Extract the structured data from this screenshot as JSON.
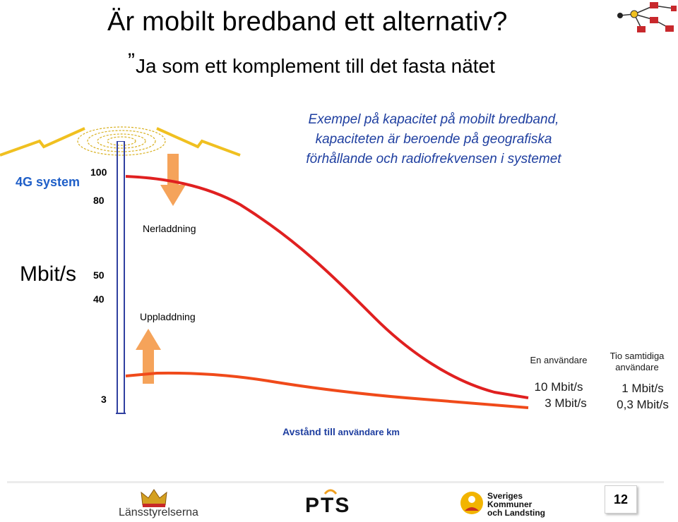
{
  "slide": {
    "title": "Är mobilt bredband ett alternativ?",
    "subtitle": "Ja som ett komplement till det fasta nätet",
    "subtitle_quote": "”",
    "description": "Exempel på kapacitet på mobilt bredband, kapaciteten är beroende på geografiska förhållande och radiofrekvensen i systemet",
    "system_label": "4G system",
    "unit_label": "Mbit/s",
    "ticks": {
      "t100": "100",
      "t80": "80",
      "t50": "50",
      "t40": "40",
      "t3": "3"
    },
    "download_label": "Nerladdning",
    "upload_label": "Uppladdning",
    "xaxis_label_bold": "Avstånd till",
    "xaxis_label_rest": " användare km",
    "single_user": {
      "header": "En användare",
      "down": "10 Mbit/s",
      "up": "3 Mbit/s"
    },
    "ten_users": {
      "header_line1": "Tio samtidiga",
      "header_line2": "användare",
      "down": "1 Mbit/s",
      "up": "0,3 Mbit/s"
    },
    "page_number": "12"
  },
  "footer": {
    "logo1": "Länsstyrelserna",
    "logo2": "PTS",
    "logo3_line1": "Sveriges",
    "logo3_line2": "Kommuner",
    "logo3_line3": "och Landsting"
  },
  "colors": {
    "download_curve": "#e02020",
    "upload_curve": "#f04a1a",
    "arrow": "#f5a35a",
    "accent_blue": "#1f3fa0",
    "beam_yellow": "#f0c020"
  },
  "chart_data": {
    "type": "line",
    "xlabel": "Avstånd till användare km",
    "ylabel": "Mbit/s",
    "yticks": [
      100,
      80,
      50,
      40,
      3
    ],
    "series": [
      {
        "name": "Nerladdning"
      },
      {
        "name": "Uppladdning"
      }
    ]
  }
}
